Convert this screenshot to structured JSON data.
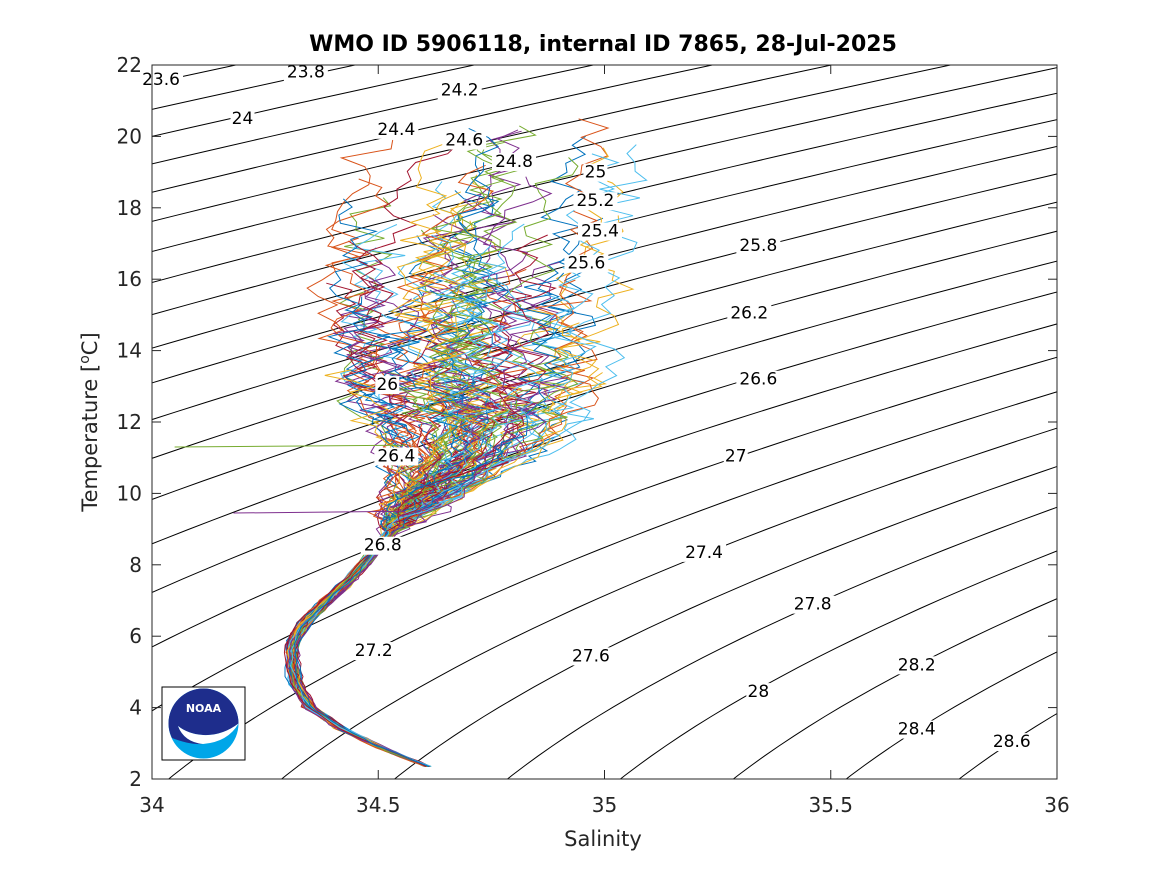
{
  "chart_data": {
    "type": "line",
    "title": "WMO ID 5906118, internal ID 7865, 28-Jul-2025",
    "xlabel": "Salinity",
    "ylabel_main": "Temperature [",
    "ylabel_sup": "o",
    "ylabel_tail": "C]",
    "xlim": [
      34,
      36
    ],
    "ylim": [
      2,
      22
    ],
    "xticks": [
      "34",
      "34.5",
      "35",
      "35.5",
      "36"
    ],
    "yticks": [
      "2",
      "4",
      "6",
      "8",
      "10",
      "12",
      "14",
      "16",
      "18",
      "20",
      "22"
    ],
    "grid": false,
    "legend": "none",
    "density_contours": {
      "levels": [
        23.6,
        23.8,
        24,
        24.2,
        24.4,
        24.6,
        24.8,
        25,
        25.2,
        25.4,
        25.6,
        25.8,
        26,
        26.2,
        26.4,
        26.6,
        26.8,
        27,
        27.2,
        27.4,
        27.6,
        27.8,
        28,
        28.2,
        28.4,
        28.6
      ],
      "labels": [
        {
          "text": "23.6",
          "s": 34.02,
          "t": 21.5
        },
        {
          "text": "23.8",
          "s": 34.34,
          "t": 21.7
        },
        {
          "text": "24",
          "s": 34.2,
          "t": 20.4
        },
        {
          "text": "24.2",
          "s": 34.68,
          "t": 21.2
        },
        {
          "text": "24.4",
          "s": 34.54,
          "t": 20.1
        },
        {
          "text": "24.6",
          "s": 34.69,
          "t": 19.8
        },
        {
          "text": "24.8",
          "s": 34.8,
          "t": 19.2
        },
        {
          "text": "25",
          "s": 34.98,
          "t": 18.9
        },
        {
          "text": "25.2",
          "s": 34.98,
          "t": 18.1
        },
        {
          "text": "25.4",
          "s": 34.99,
          "t": 17.25
        },
        {
          "text": "25.6",
          "s": 34.96,
          "t": 16.35
        },
        {
          "text": "25.8",
          "s": 35.34,
          "t": 16.85
        },
        {
          "text": "26",
          "s": 34.52,
          "t": 12.95
        },
        {
          "text": "26.2",
          "s": 35.32,
          "t": 14.95
        },
        {
          "text": "26.4",
          "s": 34.54,
          "t": 10.95
        },
        {
          "text": "26.6",
          "s": 35.34,
          "t": 13.1
        },
        {
          "text": "26.8",
          "s": 34.51,
          "t": 8.45
        },
        {
          "text": "27",
          "s": 35.29,
          "t": 10.95
        },
        {
          "text": "27.2",
          "s": 34.49,
          "t": 5.5
        },
        {
          "text": "27.4",
          "s": 35.22,
          "t": 8.25
        },
        {
          "text": "27.6",
          "s": 34.97,
          "t": 5.35
        },
        {
          "text": "27.8",
          "s": 35.46,
          "t": 6.8
        },
        {
          "text": "28",
          "s": 35.34,
          "t": 4.35
        },
        {
          "text": "28.2",
          "s": 35.69,
          "t": 5.1
        },
        {
          "text": "28.4",
          "s": 35.69,
          "t": 3.3
        },
        {
          "text": "28.6",
          "s": 35.9,
          "t": 2.95
        }
      ]
    },
    "profiles": {
      "count": 120,
      "colors": [
        "#0072BD",
        "#D95319",
        "#EDB120",
        "#7E2F8E",
        "#77AC30",
        "#4DBEEE",
        "#A2142F"
      ],
      "mean_path": [
        {
          "t": 2.3,
          "s": 34.62
        },
        {
          "t": 2.8,
          "s": 34.52
        },
        {
          "t": 3.4,
          "s": 34.42
        },
        {
          "t": 4.0,
          "s": 34.35
        },
        {
          "t": 4.6,
          "s": 34.32
        },
        {
          "t": 5.2,
          "s": 34.31
        },
        {
          "t": 5.8,
          "s": 34.31
        },
        {
          "t": 6.4,
          "s": 34.34
        },
        {
          "t": 7.0,
          "s": 34.39
        },
        {
          "t": 7.6,
          "s": 34.44
        },
        {
          "t": 8.2,
          "s": 34.48
        },
        {
          "t": 8.8,
          "s": 34.52
        },
        {
          "t": 9.4,
          "s": 34.56
        },
        {
          "t": 10.0,
          "s": 34.61
        },
        {
          "t": 10.6,
          "s": 34.66
        },
        {
          "t": 11.2,
          "s": 34.7
        },
        {
          "t": 12.0,
          "s": 34.72
        },
        {
          "t": 13.0,
          "s": 34.72
        },
        {
          "t": 14.0,
          "s": 34.71
        },
        {
          "t": 15.0,
          "s": 34.71
        },
        {
          "t": 16.0,
          "s": 34.71
        },
        {
          "t": 17.0,
          "s": 34.72
        },
        {
          "t": 18.0,
          "s": 34.74
        },
        {
          "t": 19.0,
          "s": 34.76
        },
        {
          "t": 20.0,
          "s": 34.78
        }
      ],
      "notable_points": [
        {
          "s": 34.05,
          "t": 11.3
        },
        {
          "s": 34.18,
          "t": 9.45
        },
        {
          "s": 35.05,
          "t": 21.0
        }
      ]
    }
  }
}
